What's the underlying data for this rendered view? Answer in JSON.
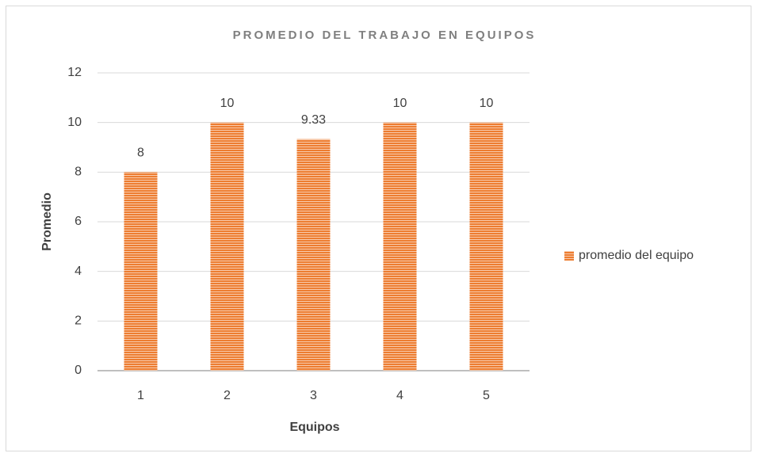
{
  "chart_data": {
    "type": "bar",
    "title": "PROMEDIO DEL TRABAJO EN EQUIPOS",
    "x_label": "Equipos",
    "y_label": "Promedio",
    "categories": [
      "1",
      "2",
      "3",
      "4",
      "5"
    ],
    "series": [
      {
        "name": "promedio del equipo",
        "color": "#ed7d31",
        "values": [
          8,
          10,
          9.33,
          10,
          10
        ]
      }
    ],
    "ylim": [
      0,
      12
    ],
    "yticks": [
      0,
      2,
      4,
      6,
      8,
      10,
      12
    ],
    "grid": true,
    "legend": "right"
  }
}
